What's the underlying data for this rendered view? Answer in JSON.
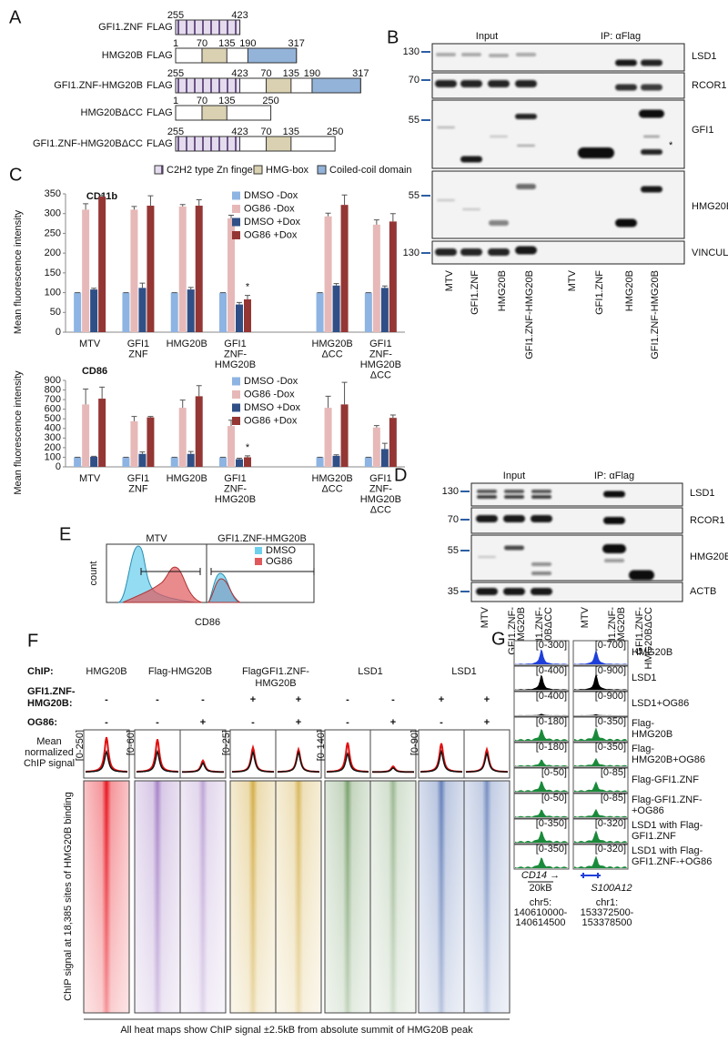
{
  "panel_labels": [
    "A",
    "B",
    "C",
    "D",
    "E",
    "F",
    "G"
  ],
  "panel_a": {
    "constructs": [
      {
        "label": "GFI1.ZNF",
        "tag": "FLAG",
        "numbers": [
          255,
          423
        ]
      },
      {
        "label": "HMG20B",
        "tag": "FLAG",
        "numbers": [
          1,
          70,
          135,
          190,
          317
        ]
      },
      {
        "label": "GFI1.ZNF-HMG20B",
        "tag": "FLAG",
        "numbers": [
          255,
          423,
          70,
          135,
          190,
          317
        ]
      },
      {
        "label": "HMG20BΔCC",
        "tag": "FLAG",
        "numbers": [
          1,
          70,
          135,
          250
        ]
      },
      {
        "label": "GFI1.ZNF-HMG20BΔCC",
        "tag": "FLAG",
        "numbers": [
          255,
          423,
          70,
          135,
          250
        ]
      }
    ],
    "legend": [
      "C2H2 type Zn finger",
      "HMG-box",
      "Coiled-coil domain"
    ]
  },
  "panel_b": {
    "headers": [
      "Input",
      "IP: αFlag"
    ],
    "markers": [
      130,
      70,
      55,
      55,
      130
    ],
    "proteins": [
      "LSD1",
      "RCOR1",
      "GFI1",
      "HMG20B",
      "VINCULIN"
    ],
    "lanes": [
      "MTV",
      "GFI1.ZNF",
      "HMG20B",
      "GFI1.ZNF-HMG20B",
      "MTV",
      "GFI1.ZNF",
      "HMG20B",
      "GFI1.ZNF-HMG20B"
    ],
    "annotation": "*"
  },
  "chart_data": [
    {
      "type": "bar",
      "title": "CD11b",
      "ylabel": "Mean fluorescence intensity",
      "categories": [
        "MTV",
        "GFI1\nZNF",
        "HMG20B",
        "GFI1\nZNF-\nHMG20B",
        null,
        "HMG20B\nΔCC",
        "GFI1\nZNF-\nHMG20B\nΔCC"
      ],
      "series": [
        {
          "name": "DMSO -Dox",
          "color": "#8db4e2",
          "values": [
            100,
            100,
            100,
            100,
            null,
            100,
            100
          ],
          "errors": [
            0,
            0,
            0,
            0,
            null,
            0,
            0
          ]
        },
        {
          "name": "OG86 -Dox",
          "color": "#e6b9b8",
          "values": [
            310,
            310,
            318,
            288,
            null,
            293,
            272
          ],
          "errors": [
            15,
            8,
            5,
            8,
            null,
            8,
            12
          ]
        },
        {
          "name": "DMSO +Dox",
          "color": "#2f4f86",
          "values": [
            108,
            112,
            108,
            70,
            null,
            118,
            112
          ],
          "errors": [
            3,
            12,
            5,
            5,
            null,
            5,
            5
          ]
        },
        {
          "name": "OG86 +Dox",
          "color": "#943634",
          "values": [
            343,
            320,
            320,
            83,
            null,
            322,
            280
          ],
          "errors": [
            3,
            25,
            15,
            10,
            null,
            25,
            20
          ]
        }
      ],
      "ylim": [
        0,
        350
      ],
      "yticks": [
        0,
        50,
        100,
        150,
        200,
        250,
        300,
        350
      ],
      "annotation": "*"
    },
    {
      "type": "bar",
      "title": "CD86",
      "ylabel": "Mean fluorescence intensity",
      "categories": [
        "MTV",
        "GFI1\nZNF",
        "HMG20B",
        "GFI1\nZNF-\nHMG20B",
        null,
        "HMG20B\nΔCC",
        "GFI1\nZNF-\nHMG20B\nΔCC"
      ],
      "series": [
        {
          "name": "DMSO -Dox",
          "color": "#8db4e2",
          "values": [
            100,
            100,
            100,
            100,
            null,
            100,
            100
          ],
          "errors": [
            0,
            0,
            0,
            0,
            null,
            0,
            0
          ]
        },
        {
          "name": "OG86 -Dox",
          "color": "#e6b9b8",
          "values": [
            650,
            475,
            615,
            425,
            null,
            615,
            410
          ],
          "errors": [
            160,
            50,
            80,
            60,
            null,
            120,
            20
          ]
        },
        {
          "name": "DMSO +Dox",
          "color": "#2f4f86",
          "values": [
            105,
            135,
            135,
            80,
            null,
            115,
            185
          ],
          "errors": [
            5,
            20,
            25,
            10,
            null,
            10,
            60
          ]
        },
        {
          "name": "OG86 +Dox",
          "color": "#943634",
          "values": [
            710,
            515,
            735,
            100,
            null,
            650,
            510
          ],
          "errors": [
            120,
            10,
            110,
            15,
            null,
            230,
            30
          ]
        }
      ],
      "ylim": [
        0,
        900
      ],
      "yticks": [
        0,
        100,
        200,
        300,
        400,
        500,
        600,
        700,
        800,
        900
      ],
      "annotation": "*"
    }
  ],
  "panel_d": {
    "headers": [
      "Input",
      "IP: αFlag"
    ],
    "markers": [
      130,
      70,
      55,
      35
    ],
    "proteins": [
      "LSD1",
      "RCOR1",
      "HMG20B",
      "ACTB"
    ],
    "lanes": [
      "MTV",
      "GFI1.ZNF-\nHMG20B",
      "GFI1.ZNF-\nHMG20BΔCC",
      "MTV",
      "GFI1.ZNF-\nHMG20B",
      "GFI1.ZNF-\nHMG20BΔCC"
    ]
  },
  "panel_e": {
    "titles": [
      "MTV",
      "GFI1.ZNF-HMG20B"
    ],
    "ylabel": "count",
    "xlabel": "CD86",
    "legend": [
      {
        "name": "DMSO",
        "color": "#6fd0ee"
      },
      {
        "name": "OG86",
        "color": "#e0585c"
      }
    ]
  },
  "panel_f": {
    "row_headers": [
      "ChIP:",
      "GFI1.ZNF-\nHMG20B:",
      "OG86:"
    ],
    "groups": [
      {
        "name": "HMG20B",
        "range": "[0-250]",
        "color": "#e8141e",
        "columns": [
          [
            "-",
            "-"
          ]
        ]
      },
      {
        "name": "Flag-HMG20B",
        "range": "[0-60]",
        "color": "#8a5bb5",
        "columns": [
          [
            "-",
            "-"
          ],
          [
            "-",
            "+"
          ]
        ]
      },
      {
        "name": "FlagGFI1.ZNF-\nHMG20B",
        "range": "[0-25]",
        "color": "#c99a1a",
        "columns": [
          [
            "+",
            "-"
          ],
          [
            "+",
            "+"
          ]
        ]
      },
      {
        "name": "LSD1",
        "range": "[0-140]",
        "color": "#5a8a4a",
        "columns": [
          [
            "-",
            "-"
          ],
          [
            "-",
            "+"
          ]
        ]
      },
      {
        "name": "LSD1",
        "range": "[0-90]",
        "color": "#3d5fa8",
        "columns": [
          [
            "+",
            "-"
          ],
          [
            "+",
            "+"
          ]
        ]
      }
    ],
    "profile_label": "Mean\nnormalized\nChIP signal",
    "ylabel": "ChIP signal at 18,385 sites of HMG20B binding",
    "footer": "All heat maps show ChIP signal ±2.5kB from absolute summit of HMG20B peak"
  },
  "panel_g": {
    "tracks": [
      {
        "label": "HMG20B",
        "ranges": [
          "[0-300]",
          "[0-700]"
        ],
        "color": "#1f3fdb"
      },
      {
        "label": "LSD1",
        "ranges": [
          "[0-400]",
          "[0-900]"
        ],
        "color": "#000000"
      },
      {
        "label": "LSD1+OG86",
        "ranges": [
          "[0-400]",
          "[0-900]"
        ],
        "color": "#000000"
      },
      {
        "label": "Flag-\nHMG20B",
        "ranges": [
          "[0-180]",
          "[0-350]"
        ],
        "color": "#1a8a3a"
      },
      {
        "label": "Flag-\nHMG20B+OG86",
        "ranges": [
          "[0-180]",
          "[0-350]"
        ],
        "color": "#1a8a3a"
      },
      {
        "label": "Flag-GFI1.ZNF",
        "ranges": [
          "[0-50]",
          "[0-85]"
        ],
        "color": "#1a8a3a"
      },
      {
        "label": "Flag-GFI1.ZNF-\n+OG86",
        "ranges": [
          "[0-50]",
          "[0-85]"
        ],
        "color": "#1a8a3a"
      },
      {
        "label": "LSD1 with Flag-\nGFI1.ZNF",
        "ranges": [
          "[0-350]",
          "[0-320]"
        ],
        "color": "#1a8a3a"
      },
      {
        "label": "LSD1 with Flag-\nGFI1.ZNF-+OG86",
        "ranges": [
          "[0-350]",
          "[0-320]"
        ],
        "color": "#1a8a3a"
      }
    ],
    "genes": [
      "CD14 →",
      "S100A12"
    ],
    "scale": "20kB",
    "coordinates": [
      "chr5:\n140610000-\n140614500",
      "chr1:\n153372500-\n153378500"
    ]
  }
}
